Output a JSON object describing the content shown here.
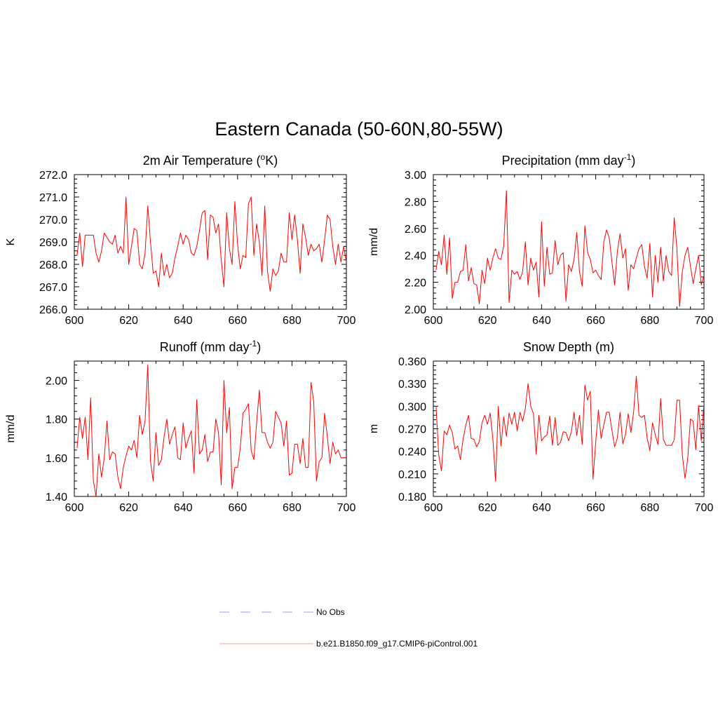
{
  "figure": {
    "title": "Eastern Canada (50-60N,80-55W)"
  },
  "legend": {
    "items": [
      {
        "label": "No Obs",
        "style": "dashed",
        "color": "#9999ff"
      },
      {
        "label": "b.e21.B1850.f09_g17.CMIP6-piControl.001",
        "style": "solid",
        "color": "#ff0000"
      }
    ]
  },
  "chart_data": [
    {
      "type": "line",
      "title": "2m Air Temperature (oK)",
      "title_main": "2m Air Temperature (",
      "title_sup": "o",
      "title_post": "K)",
      "xlabel": "",
      "ylabel": "K",
      "xlim": [
        600,
        700
      ],
      "ylim": [
        266.0,
        272.0
      ],
      "xticks": [
        600,
        620,
        640,
        660,
        680,
        700
      ],
      "yticks": [
        "266.0",
        "267.0",
        "268.0",
        "269.0",
        "270.0",
        "271.0",
        "272.0"
      ],
      "ytick_values": [
        266.0,
        267.0,
        268.0,
        269.0,
        270.0,
        271.0,
        272.0
      ],
      "grid": false,
      "series": [
        {
          "name": "b.e21.B1850.f09_g17.CMIP6-piControl.001",
          "color": "#ff0000",
          "x_start": 601,
          "values": [
            268.4,
            269.4,
            267.9,
            269.3,
            269.3,
            269.3,
            269.3,
            268.5,
            268.1,
            268.6,
            269.4,
            269.2,
            269.0,
            268.9,
            269.3,
            268.5,
            268.8,
            268.5,
            271.0,
            268.0,
            268.8,
            269.6,
            269.5,
            268.0,
            267.8,
            268.5,
            270.6,
            269.0,
            267.6,
            267.7,
            267.0,
            268.5,
            267.5,
            268.0,
            267.4,
            267.6,
            268.3,
            268.8,
            269.4,
            268.9,
            269.3,
            269.1,
            268.5,
            268.4,
            268.8,
            269.5,
            270.3,
            270.4,
            268.2,
            270.2,
            270.1,
            269.4,
            269.8,
            268.2,
            267.0,
            270.3,
            268.7,
            268.0,
            270.8,
            268.9,
            267.8,
            268.4,
            268.3,
            270.7,
            271.0,
            268.4,
            269.8,
            269.0,
            267.5,
            270.6,
            267.7,
            266.8,
            267.8,
            267.5,
            267.7,
            268.5,
            268.1,
            268.1,
            270.3,
            269.1,
            270.2,
            269.1,
            267.6,
            269.8,
            269.2,
            268.4,
            268.9,
            268.6,
            268.7,
            268.9,
            268.1,
            269.1,
            270.2,
            270.0,
            268.8,
            268.0,
            268.9,
            268.1,
            268.8,
            268.1
          ]
        }
      ]
    },
    {
      "type": "line",
      "title": "Precipitation (mm day-1)",
      "title_main": "Precipitation (mm day",
      "title_sup": "-1",
      "title_post": ")",
      "xlabel": "",
      "ylabel": "mm/d",
      "xlim": [
        600,
        700
      ],
      "ylim": [
        2.0,
        3.0
      ],
      "xticks": [
        600,
        620,
        640,
        660,
        680,
        700
      ],
      "yticks": [
        "2.00",
        "2.20",
        "2.40",
        "2.60",
        "2.80",
        "3.00"
      ],
      "ytick_values": [
        2.0,
        2.2,
        2.4,
        2.6,
        2.8,
        3.0
      ],
      "grid": false,
      "series": [
        {
          "name": "b.e21.B1850.f09_g17.CMIP6-piControl.001",
          "color": "#ff0000",
          "x_start": 601,
          "values": [
            2.29,
            2.43,
            2.33,
            2.55,
            2.26,
            2.53,
            2.08,
            2.2,
            2.2,
            2.28,
            2.29,
            2.48,
            2.21,
            2.31,
            2.19,
            2.18,
            2.04,
            2.29,
            2.19,
            2.38,
            2.29,
            2.38,
            2.45,
            2.38,
            2.37,
            2.47,
            2.88,
            2.05,
            2.29,
            2.26,
            2.28,
            2.22,
            2.28,
            2.5,
            2.18,
            2.38,
            2.29,
            2.35,
            2.09,
            2.65,
            2.17,
            2.46,
            2.26,
            2.27,
            2.51,
            2.33,
            2.4,
            2.42,
            2.06,
            2.33,
            2.28,
            2.37,
            2.57,
            2.28,
            2.17,
            2.62,
            2.42,
            2.37,
            2.27,
            2.29,
            2.25,
            2.22,
            2.5,
            2.59,
            2.53,
            2.35,
            2.18,
            2.43,
            2.56,
            2.38,
            2.45,
            2.14,
            2.33,
            2.3,
            2.38,
            2.45,
            2.48,
            2.32,
            2.23,
            2.49,
            2.09,
            2.4,
            2.2,
            2.46,
            2.21,
            2.4,
            2.28,
            2.25,
            2.68,
            2.45,
            2.02,
            2.28,
            2.4,
            2.46,
            2.32,
            2.19,
            2.3,
            2.4,
            2.18,
            2.25
          ]
        }
      ]
    },
    {
      "type": "line",
      "title": "Runoff (mm day-1)",
      "title_main": "Runoff (mm day",
      "title_sup": "-1",
      "title_post": ")",
      "xlabel": "",
      "ylabel": "mm/d",
      "xlim": [
        600,
        700
      ],
      "ylim": [
        1.4,
        2.1
      ],
      "xticks": [
        600,
        620,
        640,
        660,
        680,
        700
      ],
      "yticks": [
        "1.40",
        "1.60",
        "1.80",
        "2.00"
      ],
      "ytick_values": [
        1.4,
        1.6,
        1.8,
        2.0
      ],
      "grid": false,
      "series": [
        {
          "name": "b.e21.B1850.f09_g17.CMIP6-piControl.001",
          "color": "#ff0000",
          "x_start": 601,
          "values": [
            1.65,
            1.81,
            1.7,
            1.81,
            1.59,
            1.91,
            1.48,
            1.4,
            1.62,
            1.5,
            1.6,
            1.79,
            1.59,
            1.63,
            1.62,
            1.5,
            1.44,
            1.55,
            1.61,
            1.66,
            1.64,
            1.69,
            1.6,
            1.82,
            1.72,
            1.79,
            2.08,
            1.58,
            1.48,
            1.73,
            1.56,
            1.59,
            1.71,
            1.8,
            1.67,
            1.72,
            1.76,
            1.6,
            1.59,
            1.78,
            1.65,
            1.7,
            1.74,
            1.52,
            1.9,
            1.62,
            1.64,
            1.72,
            1.58,
            1.63,
            1.63,
            1.8,
            1.73,
            1.46,
            2.0,
            1.73,
            1.86,
            1.44,
            1.55,
            1.55,
            1.65,
            1.83,
            1.85,
            1.88,
            1.64,
            1.59,
            1.78,
            1.95,
            1.73,
            1.73,
            1.68,
            1.65,
            1.68,
            1.84,
            1.81,
            1.78,
            1.66,
            1.79,
            1.51,
            1.52,
            1.67,
            1.67,
            1.57,
            1.7,
            1.55,
            1.55,
            1.99,
            1.89,
            1.48,
            1.58,
            1.6,
            1.83,
            1.71,
            1.57,
            1.68,
            1.62,
            1.64,
            1.6,
            1.6,
            1.6
          ]
        }
      ]
    },
    {
      "type": "line",
      "title": "Snow Depth (m)",
      "title_main": "Snow Depth (m)",
      "title_sup": "",
      "title_post": "",
      "xlabel": "",
      "ylabel": "m",
      "xlim": [
        600,
        700
      ],
      "ylim": [
        0.18,
        0.36
      ],
      "xticks": [
        600,
        620,
        640,
        660,
        680,
        700
      ],
      "yticks": [
        "0.180",
        "0.210",
        "0.240",
        "0.270",
        "0.300",
        "0.330",
        "0.360"
      ],
      "ytick_values": [
        0.18,
        0.21,
        0.24,
        0.27,
        0.3,
        0.33,
        0.36
      ],
      "grid": false,
      "series": [
        {
          "name": "b.e21.B1850.f09_g17.CMIP6-piControl.001",
          "color": "#ff0000",
          "x_start": 601,
          "values": [
            0.3,
            0.235,
            0.214,
            0.267,
            0.262,
            0.275,
            0.265,
            0.243,
            0.247,
            0.229,
            0.256,
            0.275,
            0.288,
            0.257,
            0.256,
            0.246,
            0.253,
            0.278,
            0.288,
            0.276,
            0.291,
            0.257,
            0.2,
            0.3,
            0.247,
            0.286,
            0.26,
            0.291,
            0.276,
            0.292,
            0.267,
            0.292,
            0.28,
            0.297,
            0.33,
            0.3,
            0.29,
            0.236,
            0.288,
            0.254,
            0.259,
            0.262,
            0.287,
            0.248,
            0.285,
            0.248,
            0.252,
            0.266,
            0.265,
            0.254,
            0.266,
            0.292,
            0.261,
            0.288,
            0.249,
            0.328,
            0.308,
            0.32,
            0.203,
            0.252,
            0.295,
            0.257,
            0.275,
            0.292,
            0.292,
            0.268,
            0.246,
            0.258,
            0.292,
            0.25,
            0.262,
            0.29,
            0.265,
            0.292,
            0.34,
            0.288,
            0.285,
            0.288,
            0.258,
            0.241,
            0.278,
            0.262,
            0.249,
            0.31,
            0.256,
            0.248,
            0.248,
            0.248,
            0.255,
            0.308,
            0.308,
            0.235,
            0.204,
            0.231,
            0.283,
            0.28,
            0.242,
            0.301,
            0.254,
            0.304
          ]
        }
      ]
    }
  ]
}
